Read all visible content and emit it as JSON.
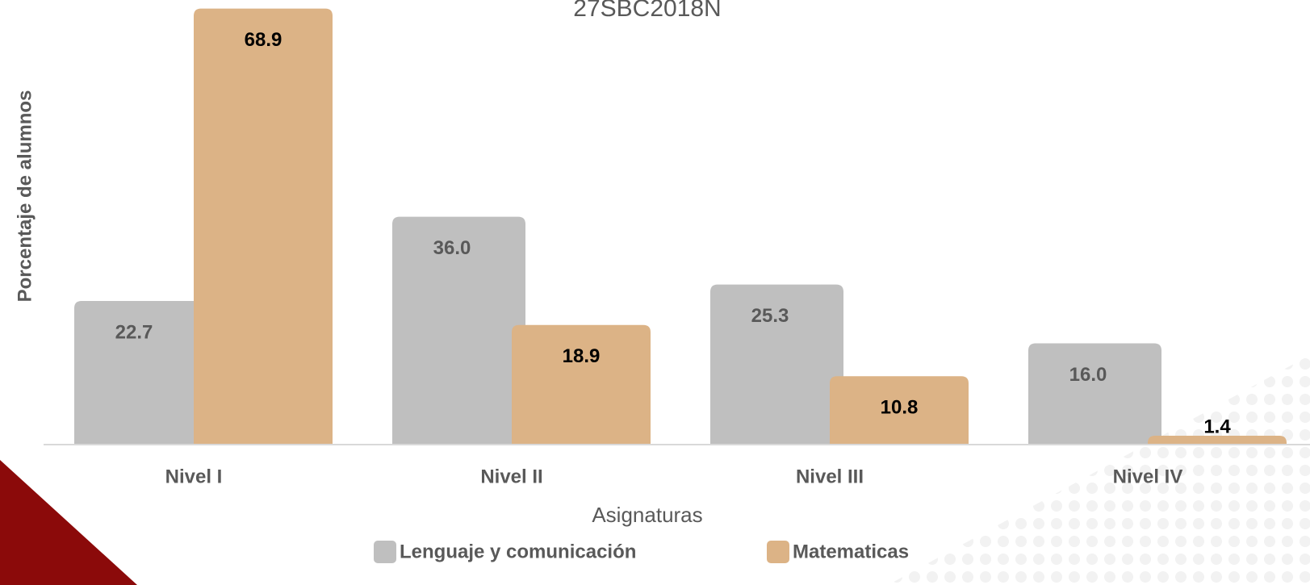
{
  "chart_data": {
    "type": "bar",
    "title": "27SBC2018N",
    "x_label": "Asignaturas",
    "y_label": "Porcentaje de alumnos",
    "categories": [
      "Nivel I",
      "Nivel II",
      "Nivel III",
      "Nivel IV"
    ],
    "series": [
      {
        "name": "Lenguaje y comunicación",
        "color": "#bfbfbf",
        "values": [
          22.7,
          36.0,
          25.3,
          16.0
        ],
        "value_labels": [
          "22.7",
          "36.0",
          "25.3",
          "16.0"
        ]
      },
      {
        "name": "Matematicas",
        "color": "#dcb386",
        "values": [
          68.9,
          18.9,
          10.8,
          1.4
        ],
        "value_labels": [
          "68.9",
          "18.9",
          "10.8",
          "1.4"
        ]
      }
    ],
    "ylim": [
      0,
      70
    ]
  }
}
